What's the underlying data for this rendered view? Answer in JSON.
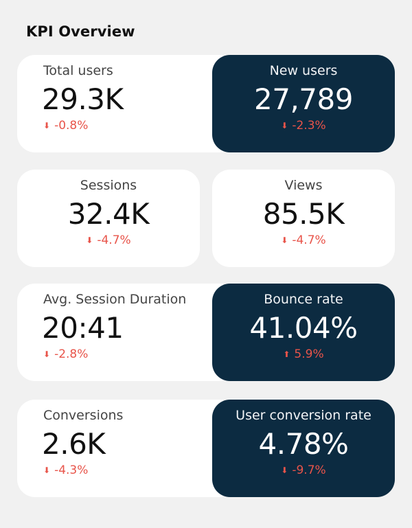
{
  "page": {
    "title": "KPI Overview"
  },
  "colors": {
    "background": "#f1f1f1",
    "card_white": "#ffffff",
    "card_dark": "#0c2b41",
    "negative": "#e8544a"
  },
  "kpis": {
    "total_users": {
      "label": "Total users",
      "value": "29.3K",
      "delta": "-0.8%",
      "trend": "down"
    },
    "new_users": {
      "label": "New users",
      "value": "27,789",
      "delta": "-2.3%",
      "trend": "down"
    },
    "sessions": {
      "label": "Sessions",
      "value": "32.4K",
      "delta": "-4.7%",
      "trend": "down"
    },
    "views": {
      "label": "Views",
      "value": "85.5K",
      "delta": "-4.7%",
      "trend": "down"
    },
    "avg_session_duration": {
      "label": "Avg. Session Duration",
      "value": "20:41",
      "delta": "-2.8%",
      "trend": "down"
    },
    "bounce_rate": {
      "label": "Bounce rate",
      "value": "41.04%",
      "delta": "5.9%",
      "trend": "up"
    },
    "conversions": {
      "label": "Conversions",
      "value": "2.6K",
      "delta": "-4.3%",
      "trend": "down"
    },
    "user_conversion_rate": {
      "label": "User conversion rate",
      "value": "4.78%",
      "delta": "-9.7%",
      "trend": "down"
    }
  },
  "icons": {
    "down": "arrow-down-icon",
    "up": "arrow-up-icon"
  }
}
